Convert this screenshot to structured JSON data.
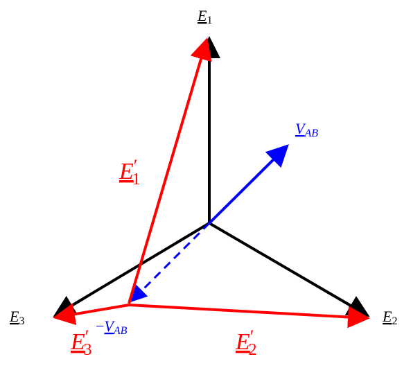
{
  "labels": {
    "E1": {
      "base": "E",
      "sub": "1"
    },
    "E2": {
      "base": "E",
      "sub": "2"
    },
    "E3": {
      "base": "E",
      "sub": "3"
    },
    "VAB": {
      "base": "V",
      "sub": "AB"
    },
    "E1p": {
      "base": "E",
      "prime": "′",
      "sub": "1"
    },
    "E2p": {
      "base": "E",
      "prime": "′",
      "sub": "2"
    },
    "E3p": {
      "base": "E",
      "prime": "′",
      "sub": "3"
    },
    "mVAB": {
      "sign": "−",
      "base": "V",
      "sub": "AB"
    }
  }
}
